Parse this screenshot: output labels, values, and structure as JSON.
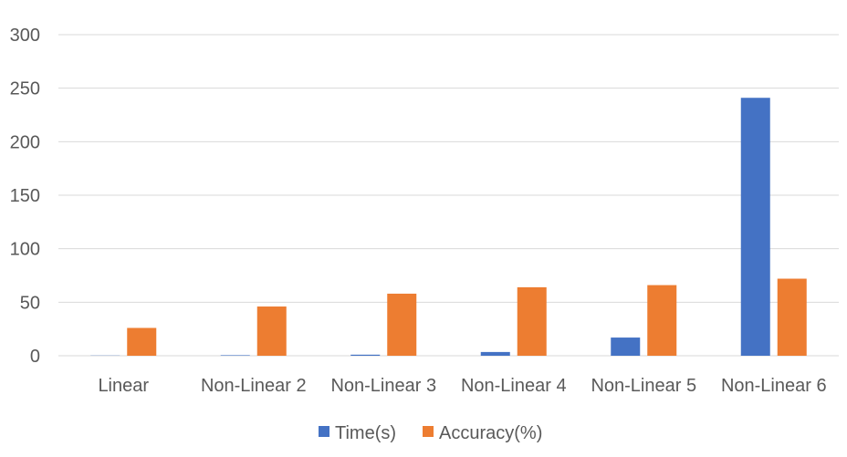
{
  "chart_data": {
    "type": "bar",
    "title": "",
    "xlabel": "",
    "ylabel": "",
    "categories": [
      "Linear",
      "Non-Linear 2",
      "Non-Linear 3",
      "Non-Linear 4",
      "Non-Linear 5",
      "Non-Linear 6"
    ],
    "series": [
      {
        "name": "Time(s)",
        "color": "#4472c4",
        "values": [
          0.2,
          0.5,
          1,
          3.5,
          17,
          241
        ]
      },
      {
        "name": "Accuracy(%)",
        "color": "#ed7d31",
        "values": [
          26,
          46,
          58,
          64,
          66,
          72
        ]
      }
    ],
    "ylim": [
      0,
      300
    ],
    "yticks": [
      0,
      50,
      100,
      150,
      200,
      250,
      300
    ],
    "grid": true,
    "legend": "bottom"
  }
}
